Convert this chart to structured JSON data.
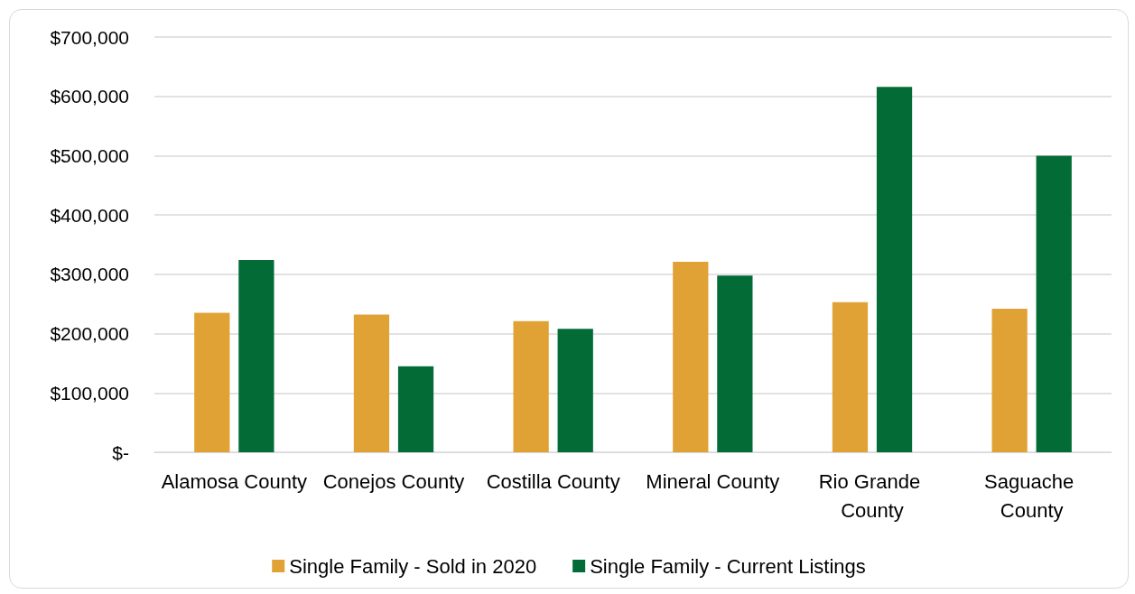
{
  "chart_data": {
    "type": "bar",
    "categories": [
      "Alamosa County",
      "Conejos County",
      "Costilla County",
      "Mineral County",
      "Rio Grande County",
      "Saguache County"
    ],
    "series": [
      {
        "name": "Single Family - Sold in 2020",
        "color": "#e0a235",
        "values": [
          235000,
          232000,
          221000,
          321000,
          253000,
          242000
        ]
      },
      {
        "name": "Single Family - Current Listings",
        "color": "#036c36",
        "values": [
          324000,
          145000,
          208000,
          298000,
          616000,
          500000
        ]
      }
    ],
    "ylim": [
      0,
      700000
    ],
    "yticks": [
      {
        "value": 0,
        "label": "$-"
      },
      {
        "value": 100000,
        "label": "$100,000"
      },
      {
        "value": 200000,
        "label": "$200,000"
      },
      {
        "value": 300000,
        "label": "$300,000"
      },
      {
        "value": 400000,
        "label": "$400,000"
      },
      {
        "value": 500000,
        "label": "$500,000"
      },
      {
        "value": 600000,
        "label": "$600,000"
      },
      {
        "value": 700000,
        "label": "$700,000"
      }
    ],
    "grid": "y",
    "legend": "bottom"
  }
}
